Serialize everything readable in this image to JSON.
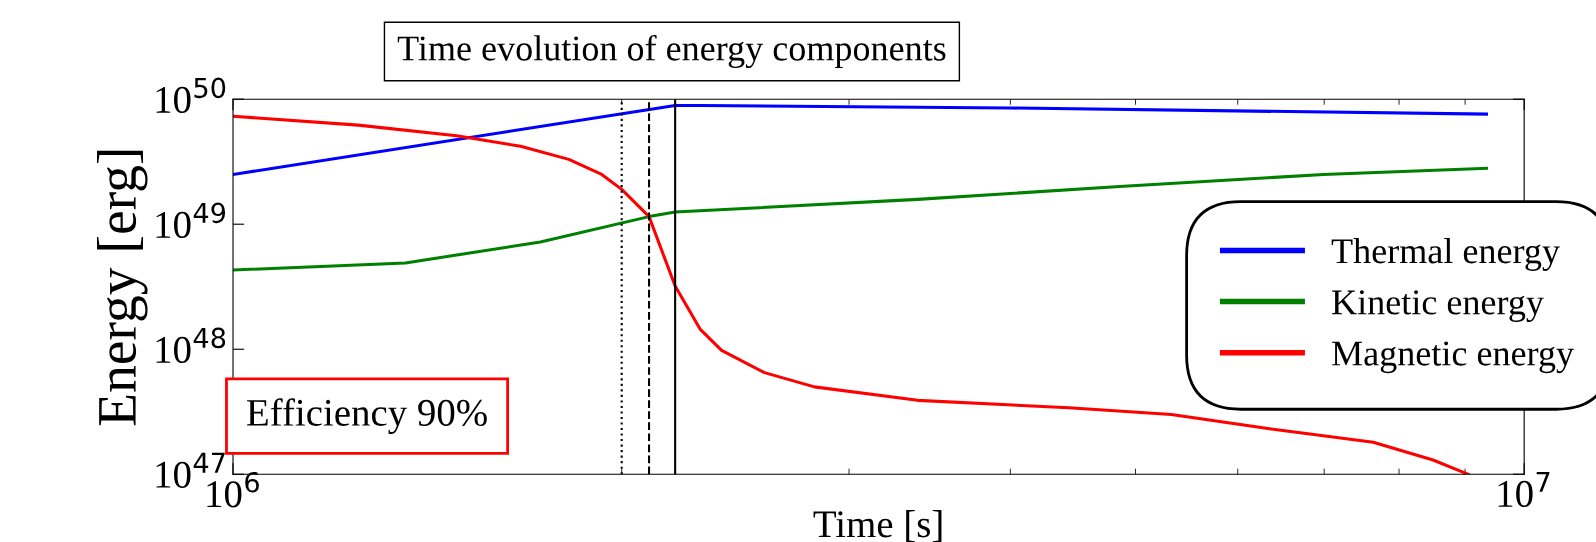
{
  "chart_data": {
    "type": "line",
    "title": "Time evolution of energy components",
    "xlabel": "Time [s]",
    "ylabel": "Energy [erg]",
    "log": "xy",
    "xlim": [
      1000000,
      10000000
    ],
    "ylim": [
      1e+47,
      1e+50
    ],
    "xticks": [
      {
        "value": 1000000,
        "label": "10$^{6}$"
      },
      {
        "value": 10000000,
        "label": "10$^{7}$"
      }
    ],
    "yticks": [
      {
        "value": 1e+47,
        "label": "10$^{47}$"
      },
      {
        "value": 1e+48,
        "label": "10$^{48}$"
      },
      {
        "value": 1e+49,
        "label": "10$^{49}$"
      },
      {
        "value": 1e+50,
        "label": "10$^{50}$"
      }
    ],
    "grid": false,
    "legend": "right",
    "line_style": "solid",
    "marker": "none",
    "series": [
      {
        "name": "Thermal energy",
        "color": "#0000ff",
        "x": [
          1000000,
          2200000,
          2300000,
          4000000,
          9350000
        ],
        "values": [
          2.5e+49,
          8.9e+49,
          8.9e+49,
          8.5e+49,
          7.6e+49
        ]
      },
      {
        "name": "Kinetic energy",
        "color": "#008000",
        "x": [
          1000000,
          1360000,
          1730000,
          2100000,
          2200000,
          3390000,
          4860000,
          6990000,
          9350000
        ],
        "values": [
          4.3e+48,
          4.9e+48,
          7.2e+48,
          1.15e+49,
          1.25e+49,
          1.58e+49,
          2e+49,
          2.5e+49,
          2.8e+49
        ]
      },
      {
        "name": "Magnetic energy",
        "color": "#ff0000",
        "x": [
          1000000,
          1250000,
          1490000,
          1670000,
          1820000,
          1930000,
          2000000,
          2100000,
          2200000,
          2300000,
          2390000,
          2580000,
          2820000,
          3390000,
          4440000,
          5330000,
          6370000,
          7640000,
          8500000,
          9050000
        ],
        "values": [
          7.3e+49,
          6.2e+49,
          5.1e+49,
          4.2e+49,
          3.3e+49,
          2.5e+49,
          1.9e+49,
          1.15e+49,
          3.2e+48,
          1.45e+48,
          9.8e+47,
          6.5e+47,
          5e+47,
          3.9e+47,
          3.4e+47,
          3e+47,
          2.3e+47,
          1.8e+47,
          1.3e+47,
          1e+47
        ]
      }
    ],
    "ref_lines": [
      {
        "axis": "x",
        "value": 2000000,
        "color": "#000000",
        "line_style": "dotted"
      },
      {
        "axis": "x",
        "value": 2100000,
        "color": "#000000",
        "line_style": "dashed"
      },
      {
        "axis": "x",
        "value": 2200000,
        "color": "#000000",
        "line_style": "solid"
      }
    ],
    "annotations": [
      "Efficiency 90%"
    ]
  }
}
